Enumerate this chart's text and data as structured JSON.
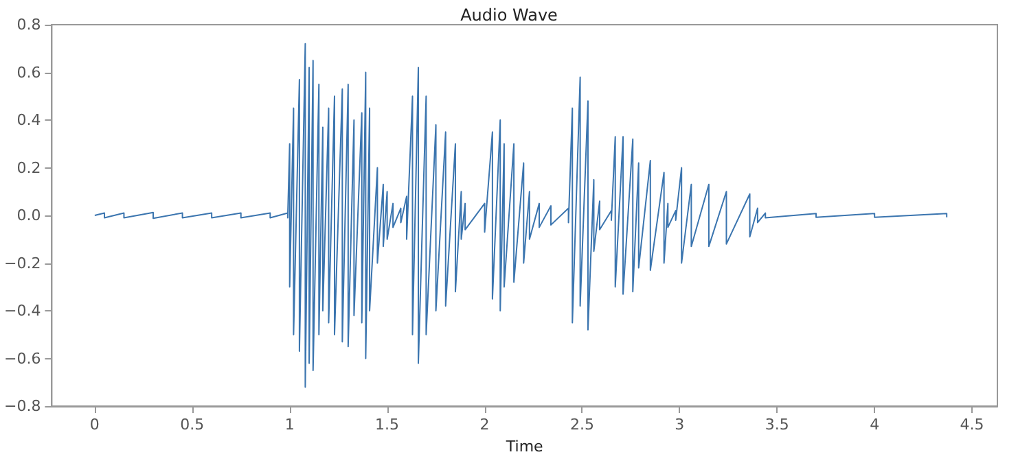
{
  "chart_data": {
    "type": "line",
    "title": "Audio Wave",
    "xlabel": "Time",
    "xlim": [
      -0.22,
      4.63
    ],
    "xticks": [
      0,
      0.5,
      1,
      1.5,
      2,
      2.5,
      3,
      3.5,
      4,
      4.5
    ],
    "ylim": [
      -0.8,
      0.8
    ],
    "yticks": [
      {
        "value": -0.8,
        "label": "−0.8"
      },
      {
        "value": -0.6,
        "label": "−0.6"
      },
      {
        "value": -0.4,
        "label": "−0.4"
      },
      {
        "value": -0.2,
        "label": "−0.2"
      },
      {
        "value": 0,
        "label": "0.0"
      },
      {
        "value": 0.2,
        "label": "0.2"
      },
      {
        "value": 0.4,
        "label": "0.4"
      },
      {
        "value": 0.6,
        "label": "0.6"
      },
      {
        "value": 0.8,
        "label": "0.8"
      }
    ],
    "grid": false,
    "marker": "none",
    "line_style": "solid",
    "series": [
      {
        "color": "#3b75af",
        "x": [
          0,
          0,
          0.05,
          0.05,
          0.15,
          0.15,
          0.3,
          0.3,
          0.45,
          0.45,
          0.6,
          0.6,
          0.75,
          0.75,
          0.9,
          0.9,
          0.99,
          0.99,
          1.0,
          1.0,
          1.02,
          1.02,
          1.05,
          1.05,
          1.08,
          1.08,
          1.1,
          1.1,
          1.12,
          1.12,
          1.15,
          1.15,
          1.17,
          1.17,
          1.2,
          1.2,
          1.23,
          1.23,
          1.27,
          1.27,
          1.3,
          1.3,
          1.33,
          1.33,
          1.37,
          1.37,
          1.39,
          1.39,
          1.41,
          1.41,
          1.45,
          1.45,
          1.48,
          1.48,
          1.5,
          1.5,
          1.53,
          1.53,
          1.57,
          1.57,
          1.6,
          1.6,
          1.63,
          1.63,
          1.66,
          1.66,
          1.7,
          1.7,
          1.75,
          1.75,
          1.8,
          1.8,
          1.85,
          1.85,
          1.88,
          1.88,
          1.9,
          1.9,
          2.0,
          2.0,
          2.04,
          2.04,
          2.08,
          2.08,
          2.1,
          2.1,
          2.15,
          2.15,
          2.2,
          2.2,
          2.23,
          2.23,
          2.28,
          2.28,
          2.34,
          2.34,
          2.43,
          2.43,
          2.45,
          2.45,
          2.49,
          2.49,
          2.53,
          2.53,
          2.56,
          2.56,
          2.59,
          2.59,
          2.65,
          2.65,
          2.67,
          2.67,
          2.71,
          2.71,
          2.76,
          2.76,
          2.79,
          2.79,
          2.85,
          2.85,
          2.92,
          2.92,
          2.94,
          2.94,
          2.98,
          2.98,
          3.01,
          3.01,
          3.06,
          3.06,
          3.15,
          3.15,
          3.24,
          3.24,
          3.36,
          3.36,
          3.4,
          3.4,
          3.44,
          3.44,
          3.7,
          3.7,
          4.0,
          4.0,
          4.37,
          4.37
        ],
        "values": [
          0,
          0,
          0.01,
          -0.01,
          0.01,
          -0.01,
          0.012,
          -0.012,
          0.01,
          -0.01,
          0.01,
          -0.01,
          0.01,
          -0.01,
          0.01,
          -0.01,
          0.01,
          -0.01,
          0.3,
          -0.3,
          0.45,
          -0.5,
          0.57,
          -0.57,
          0.72,
          -0.72,
          0.62,
          -0.62,
          0.65,
          -0.65,
          0.55,
          -0.5,
          0.37,
          -0.4,
          0.45,
          -0.45,
          0.5,
          -0.5,
          0.53,
          -0.53,
          0.55,
          -0.55,
          0.4,
          -0.42,
          0.43,
          -0.45,
          0.6,
          -0.6,
          0.45,
          -0.4,
          0.2,
          -0.2,
          0.13,
          -0.13,
          0.1,
          -0.1,
          0.05,
          -0.05,
          0.03,
          -0.03,
          0.08,
          -0.1,
          0.5,
          -0.5,
          0.62,
          -0.62,
          0.5,
          -0.5,
          0.38,
          -0.4,
          0.35,
          -0.38,
          0.3,
          -0.32,
          0.1,
          -0.1,
          0.05,
          -0.06,
          0.05,
          -0.07,
          0.35,
          -0.35,
          0.4,
          -0.4,
          0.3,
          -0.3,
          0.3,
          -0.28,
          0.22,
          -0.2,
          0.1,
          -0.1,
          0.05,
          -0.05,
          0.04,
          -0.04,
          0.03,
          -0.03,
          0.45,
          -0.45,
          0.58,
          -0.38,
          0.48,
          -0.48,
          0.15,
          -0.15,
          0.06,
          -0.06,
          0.02,
          -0.02,
          0.33,
          -0.3,
          0.33,
          -0.33,
          0.32,
          -0.32,
          0.22,
          -0.22,
          0.23,
          -0.23,
          0.18,
          -0.2,
          0.05,
          -0.05,
          0.02,
          -0.02,
          0.2,
          -0.2,
          0.13,
          -0.13,
          0.13,
          -0.13,
          0.1,
          -0.12,
          0.09,
          -0.09,
          0.03,
          -0.03,
          0.01,
          -0.01,
          0.008,
          -0.008,
          0.008,
          -0.008,
          0.008,
          -0.008
        ]
      }
    ]
  }
}
